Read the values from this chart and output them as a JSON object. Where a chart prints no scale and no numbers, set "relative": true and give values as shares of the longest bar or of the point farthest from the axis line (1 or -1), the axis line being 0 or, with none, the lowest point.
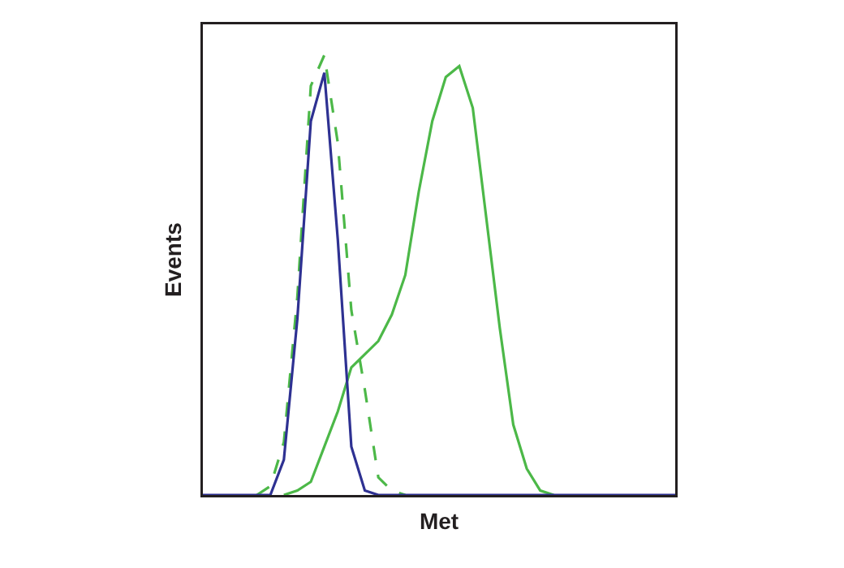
{
  "chart_data": {
    "type": "line",
    "relative": true,
    "xlabel": "Met",
    "ylabel": "Events",
    "marker": "none",
    "categories": [
      null,
      null,
      null,
      null,
      null,
      null,
      null,
      null,
      null,
      null,
      null,
      null,
      null,
      null,
      null,
      null,
      null,
      null,
      null,
      null,
      null,
      null,
      null,
      null,
      null,
      null,
      null,
      null,
      null,
      null,
      null,
      null,
      null,
      null,
      null,
      null
    ],
    "series": [
      {
        "color": "#4cb848",
        "line_style": "solid",
        "values": [
          null,
          null,
          null,
          null,
          null,
          null,
          0,
          0.01,
          0.03,
          0.11,
          0.19,
          0.29,
          0.32,
          0.35,
          0.41,
          0.5,
          0.69,
          0.85,
          0.95,
          0.975,
          0.88,
          0.63,
          0.38,
          0.16,
          0.06,
          0.01,
          0,
          null,
          null,
          null,
          null,
          null,
          null,
          null,
          null,
          null
        ]
      },
      {
        "color": "#4cb848",
        "line_style": "dashed",
        "values": [
          null,
          null,
          null,
          null,
          0,
          0.02,
          0.12,
          0.45,
          0.93,
          1,
          0.8,
          0.42,
          0.24,
          0.04,
          0.01,
          0,
          null,
          null,
          null,
          null,
          null,
          null,
          null,
          null,
          null,
          null,
          null,
          null,
          null,
          null,
          null,
          null,
          null,
          null,
          null,
          null
        ]
      },
      {
        "color": "#2e3192",
        "line_style": "solid",
        "values": [
          0,
          0,
          0,
          0,
          0,
          0,
          0.08,
          0.4,
          0.85,
          0.96,
          0.58,
          0.11,
          0.01,
          0,
          0,
          0,
          0,
          0,
          0,
          0,
          0,
          0,
          0,
          0,
          0,
          0,
          0,
          0,
          0,
          0,
          0,
          0,
          0,
          0,
          0,
          0
        ]
      }
    ]
  }
}
